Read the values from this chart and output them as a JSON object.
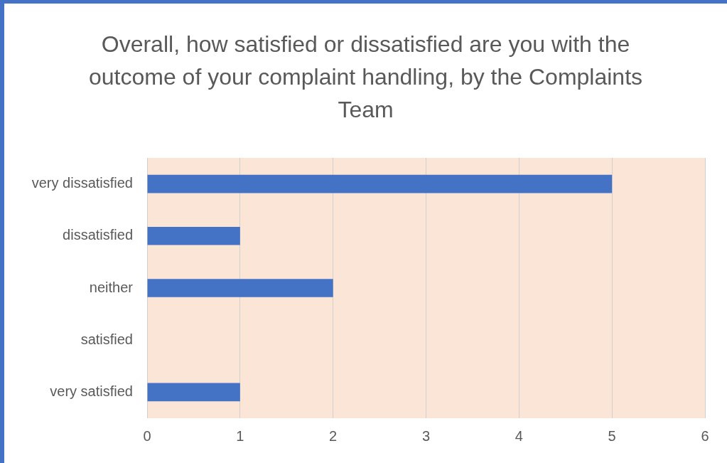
{
  "chart_data": {
    "type": "bar",
    "orientation": "horizontal",
    "title": "Overall, how satisfied or dissatisfied are you with the outcome of your complaint handling, by the Complaints Team",
    "categories": [
      "very dissatisfied",
      "dissatisfied",
      "neither",
      "satisfied",
      "very satisfied"
    ],
    "values": [
      5,
      1,
      2,
      0,
      1
    ],
    "color": "#4472c4",
    "xlim": [
      0,
      6
    ],
    "xticks": [
      0,
      1,
      2,
      3,
      4,
      5,
      6
    ],
    "grid": "x",
    "legend": false
  }
}
